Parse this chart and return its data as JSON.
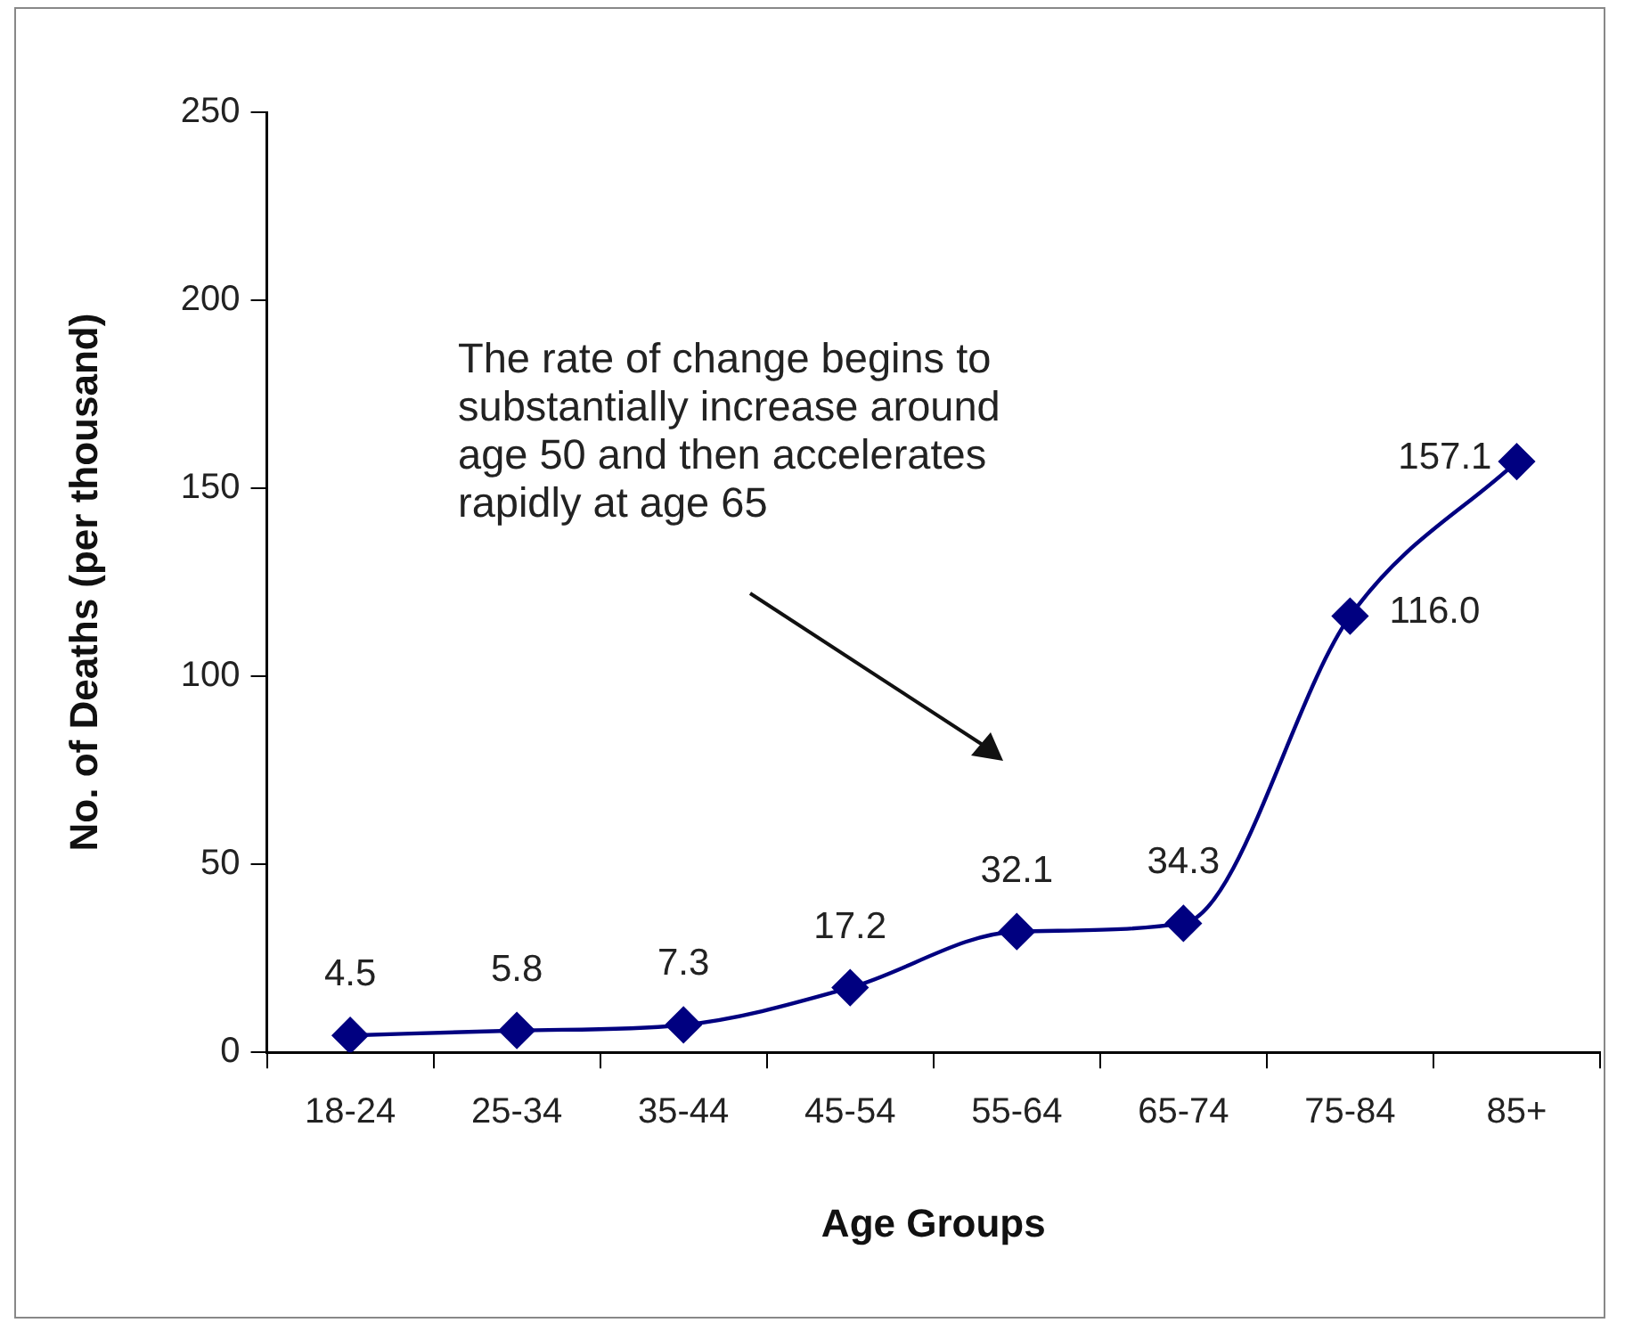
{
  "chart_data": {
    "type": "line",
    "xlabel": "Age Groups",
    "ylabel": "No. of Deaths (per thousand)",
    "categories": [
      "18-24",
      "25-34",
      "35-44",
      "45-54",
      "55-64",
      "65-74",
      "75-84",
      "85+"
    ],
    "series": [
      {
        "color": "#000080",
        "values": [
          4.5,
          5.8,
          7.3,
          17.2,
          32.1,
          34.3,
          116.0,
          157.1
        ],
        "value_labels": [
          "4.5",
          "5.8",
          "7.3",
          "17.2",
          "32.1",
          "34.3",
          "116.0",
          "157.1"
        ]
      }
    ],
    "ylim": [
      0,
      250
    ],
    "yticks": [
      0,
      50,
      100,
      150,
      200,
      250
    ],
    "grid": false,
    "legend": false,
    "marker": "diamond",
    "line_style": "solid",
    "annotations": [
      "The rate of change begins to substantially increase around age 50 and then accelerates rapidly at age 65"
    ]
  }
}
